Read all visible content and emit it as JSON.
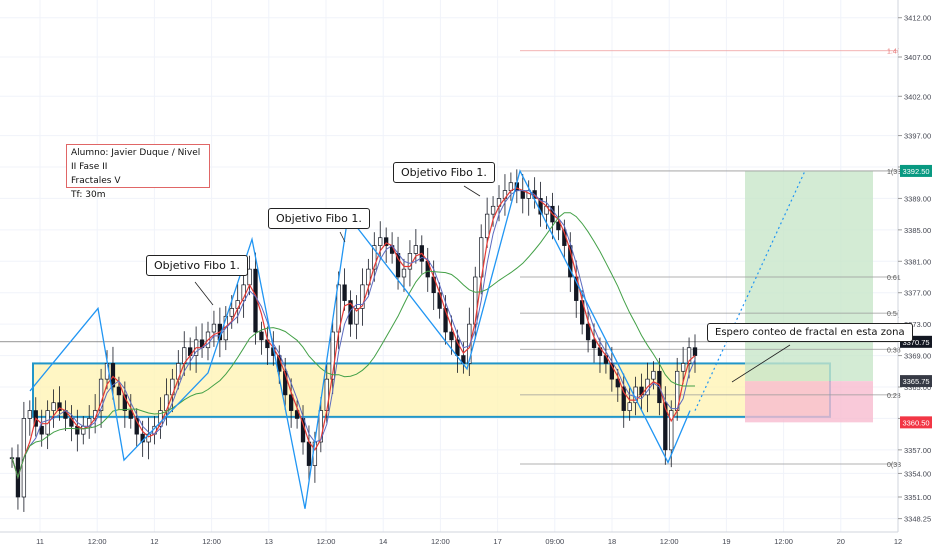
{
  "chart_data": {
    "type": "candlestick",
    "title": "",
    "price_axis": {
      "ticks": [
        "3412.00",
        "3407.00",
        "3402.00",
        "3397.00",
        "3393.00",
        "3389.00",
        "3385.00",
        "3381.00",
        "3377.00",
        "3373.00",
        "3369.00",
        "3365.00",
        "3361.00",
        "3357.00",
        "3354.00",
        "3351.00",
        "3348.25"
      ],
      "range": [
        3346.8,
        3414.0
      ]
    },
    "time_axis": {
      "ticks": [
        "11",
        "12:00",
        "12",
        "12:00",
        "13",
        "12:00",
        "14",
        "12:00",
        "17",
        "09:00",
        "18",
        "12:00",
        "19",
        "12:00",
        "20",
        "12"
      ]
    },
    "price_labels": [
      {
        "text": "3392.50",
        "kind": "target",
        "price": 3392.5,
        "color": "#089981"
      },
      {
        "text": "3370.75",
        "kind": "last",
        "price": 3370.75,
        "color": "#131722"
      },
      {
        "text": "3365.75",
        "kind": "entry",
        "price": 3365.75,
        "color": "#363a45"
      },
      {
        "text": "3360.50",
        "kind": "stop",
        "price": 3360.5,
        "color": "#f23645"
      }
    ],
    "fib_levels": [
      {
        "label": "1.4(",
        "price": 3407.8
      },
      {
        "label": "1(33",
        "price": 3392.5
      },
      {
        "label": "0.61",
        "price": 3379.0
      },
      {
        "label": "0.5(",
        "price": 3374.4
      },
      {
        "label": "0.38",
        "price": 3369.8
      },
      {
        "label": "0.23",
        "price": 3364.0
      },
      {
        "label": "0(33",
        "price": 3355.2
      }
    ],
    "zone": {
      "top": 3368.0,
      "bottom": 3361.2
    },
    "risk_reward": {
      "target": 3392.5,
      "entry": 3365.75,
      "stop": 3360.5
    },
    "zigzag": [
      3364.5,
      3375,
      3355.7,
      3366.8,
      3383.8,
      3349.5,
      3386.8,
      3367.3,
      3392.5,
      3355.4,
      3362.0
    ],
    "candles": [
      3356,
      3351,
      3361,
      3362,
      3360,
      3359,
      3362,
      3363,
      3362,
      3361,
      3360,
      3359,
      3360,
      3361,
      3362,
      3366,
      3368,
      3365,
      3364,
      3362,
      3361,
      3359,
      3358,
      3359,
      3360,
      3362,
      3364,
      3366,
      3368,
      3370,
      3369,
      3371,
      3370,
      3372,
      3373,
      3371,
      3374,
      3375,
      3376,
      3378,
      3380,
      3372,
      3371,
      3370,
      3369,
      3367,
      3364,
      3362,
      3361,
      3358,
      3355,
      3358,
      3362,
      3366,
      3372,
      3378,
      3376,
      3373,
      3375,
      3378,
      3380,
      3383,
      3384,
      3383,
      3382,
      3379,
      3380,
      3382,
      3383,
      3381,
      3379,
      3377,
      3375,
      3372,
      3371,
      3369,
      3368,
      3373,
      3379,
      3384,
      3387,
      3388,
      3389,
      3390,
      3391,
      3390,
      3389,
      3390,
      3389,
      3387,
      3388,
      3386,
      3385,
      3383,
      3379,
      3376,
      3373,
      3371,
      3370,
      3369,
      3368,
      3366,
      3365,
      3362,
      3363,
      3365,
      3364,
      3366,
      3367,
      3363,
      3357,
      3362,
      3367,
      3368,
      3370,
      3369
    ],
    "bar_data_colors": {
      "up": "#131722",
      "down": "#131722"
    },
    "colors": {
      "zigzag": "#2196f3",
      "ma_fast_red": "#e53935",
      "ma_fast_blue": "#5c6bc0",
      "ma_slow": "#43a047",
      "zone_fill": "#fff3b0",
      "zone_border": "#2196c8",
      "profit": "#c8e6c9",
      "loss": "#f8bbd0",
      "stop_zone": "#ffccbc"
    }
  },
  "annotations": [
    {
      "text": "Objetivo Fibo 1."
    },
    {
      "text": "Objetivo Fibo 1."
    },
    {
      "text": "Objetivo Fibo 1."
    },
    {
      "text": "Espero conteo de fractal en esta zona"
    }
  ],
  "info": {
    "line1": "Alumno: Javier Duque / Nivel II Fase II",
    "line2": "Fractales V",
    "line3": "Tf: 30m"
  }
}
